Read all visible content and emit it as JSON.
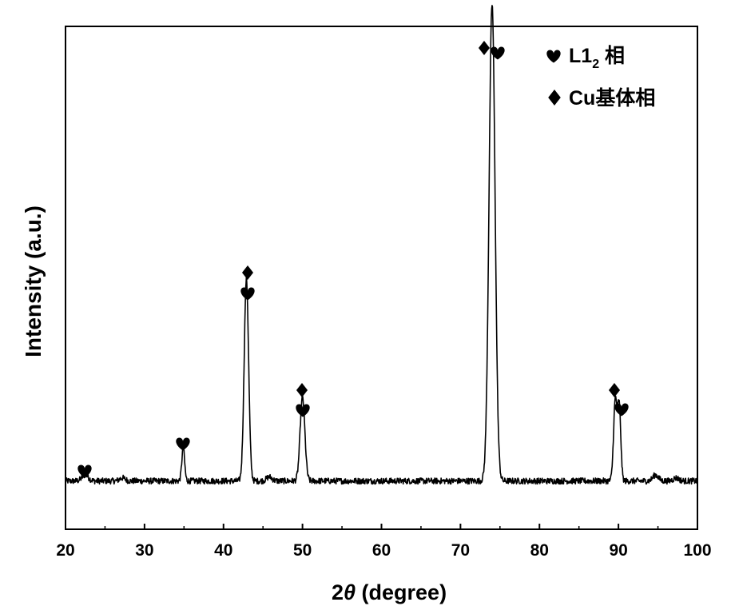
{
  "chart_data": {
    "type": "line",
    "xlabel_prefix": "2",
    "xlabel_theta": "θ",
    "xlabel_suffix": " (degree)",
    "ylabel": "Intensity (a.u.)",
    "xlim": [
      20,
      100
    ],
    "ylim": [
      0,
      1
    ],
    "x_ticks": [
      20,
      30,
      40,
      50,
      60,
      70,
      80,
      90,
      100
    ],
    "grid": false,
    "legend_position": "top-right",
    "legend": [
      {
        "marker": "heart",
        "label": "L1",
        "subscript": "2",
        "suffix": " 相"
      },
      {
        "marker": "diamond",
        "label": "Cu基体相",
        "subscript": "",
        "suffix": ""
      }
    ],
    "baseline": 0.096,
    "peaks": [
      {
        "x": 22.5,
        "height": 0.012,
        "width": 0.4,
        "markers": [
          "heart"
        ]
      },
      {
        "x": 34.9,
        "height": 0.065,
        "width": 0.18,
        "markers": [
          "heart"
        ]
      },
      {
        "x": 42.9,
        "height": 0.402,
        "width": 0.28,
        "markers": [
          "heart",
          "diamond"
        ]
      },
      {
        "x": 50.0,
        "height": 0.166,
        "width": 0.3,
        "markers": [
          "heart",
          "diamond"
        ]
      },
      {
        "x": 74.0,
        "height": 0.948,
        "width": 0.38,
        "markers": [
          "heart",
          "diamond"
        ]
      },
      {
        "x": 89.6,
        "height": 0.159,
        "width": 0.22,
        "markers": [
          "diamond"
        ]
      },
      {
        "x": 90.1,
        "height": 0.145,
        "width": 0.2,
        "markers": [
          "heart"
        ]
      }
    ],
    "bumps": [
      {
        "x": 27.2,
        "height": 0.006
      },
      {
        "x": 45.8,
        "height": 0.008
      },
      {
        "x": 94.7,
        "height": 0.012
      },
      {
        "x": 97.3,
        "height": 0.006
      }
    ],
    "noise_amplitude": 0.006,
    "line_color": "#000000"
  }
}
